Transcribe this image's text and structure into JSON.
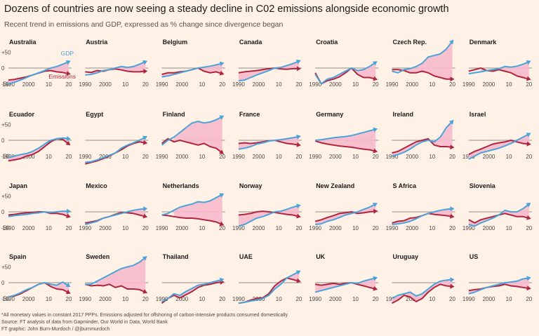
{
  "header": {
    "title": "Dozens of countries are now seeing a steady decline in C02 emissions alongside economic growth",
    "subtitle": "Recent trend in emissions and GDP, expressed as % change since divergence began"
  },
  "footer": {
    "note": "*All monetary values in constant 2017 PPPs. Emissions adjusted for offshoring of carbon-intensive products consumed domestically",
    "source": "Source: FT analysis of data from Gapminder, Our World in Data, World Bank",
    "credit": "FT graphic: John Burn-Murdoch / @jburnmurdoch"
  },
  "colors": {
    "background": "#fff1e5",
    "gdp": "#4aa3d9",
    "emissions": "#b0253e",
    "fill": "#f7b9cb",
    "zero_line": "#6b6b6b"
  },
  "chart_data": {
    "type": "line",
    "layout": "small-multiples 7x4",
    "xlim": [
      1990,
      2020
    ],
    "ylim": [
      -50,
      50
    ],
    "x_ticks": [
      1990,
      2000,
      10,
      20
    ],
    "y_ticks": [
      "+50",
      "0",
      "-50"
    ],
    "legend": {
      "gdp": "GDP",
      "emissions": "Emissions",
      "placement": "inside first panel"
    },
    "x": [
      1990,
      1993,
      1996,
      1999,
      2002,
      2005,
      2008,
      2011,
      2014,
      2017,
      2020
    ],
    "panels": [
      {
        "name": "Australia",
        "start": 1990,
        "gdp": [
          -50,
          -45,
          -38,
          -30,
          -22,
          -15,
          -8,
          0,
          5,
          12,
          20
        ],
        "emissions": [
          -38,
          -36,
          -32,
          -28,
          -22,
          -16,
          -10,
          -8,
          -12,
          -14,
          -18
        ]
      },
      {
        "name": "Austria",
        "start": 1992,
        "gdp": [
          -22,
          -20,
          -15,
          -8,
          -5,
          0,
          5,
          2,
          5,
          12,
          20
        ],
        "emissions": [
          -12,
          -14,
          -8,
          -10,
          -5,
          -3,
          -6,
          -10,
          -12,
          -12,
          -10
        ]
      },
      {
        "name": "Belgium",
        "start": 1990,
        "gdp": [
          -28,
          -25,
          -20,
          -15,
          -10,
          -5,
          0,
          3,
          6,
          10,
          15
        ],
        "emissions": [
          -20,
          -15,
          -15,
          -12,
          -10,
          -5,
          0,
          -10,
          -15,
          -12,
          -18
        ]
      },
      {
        "name": "Canada",
        "start": 1990,
        "gdp": [
          -40,
          -38,
          -30,
          -22,
          -15,
          -8,
          0,
          2,
          8,
          14,
          22
        ],
        "emissions": [
          -15,
          -12,
          -10,
          -8,
          -5,
          -2,
          0,
          -3,
          -4,
          -2,
          -2
        ]
      },
      {
        "name": "Croatia",
        "start": 1990,
        "gdp": [
          -20,
          -50,
          -35,
          -30,
          -20,
          -10,
          0,
          -8,
          -5,
          5,
          18
        ],
        "emissions": [
          -15,
          -50,
          -40,
          -35,
          -28,
          -15,
          0,
          -20,
          -30,
          -30,
          -35
        ]
      },
      {
        "name": "Czech Rep.",
        "start": 1994,
        "gdp": [
          -10,
          -15,
          -5,
          -2,
          5,
          15,
          35,
          40,
          45,
          60,
          85
        ],
        "emissions": [
          -5,
          -5,
          -8,
          -15,
          -15,
          -10,
          -15,
          -25,
          -30,
          -35,
          -35
        ]
      },
      {
        "name": "Denmark",
        "start": 1994,
        "gdp": [
          -18,
          -15,
          -12,
          -8,
          -5,
          -2,
          5,
          3,
          6,
          12,
          20
        ],
        "emissions": [
          -10,
          -5,
          0,
          -8,
          -10,
          -5,
          -10,
          -15,
          -25,
          -30,
          -35
        ]
      },
      {
        "name": "Ecuador",
        "start": 1990,
        "gdp": [
          -55,
          -50,
          -45,
          -42,
          -35,
          -25,
          -12,
          0,
          5,
          7,
          5
        ],
        "emissions": [
          -65,
          -62,
          -58,
          -50,
          -45,
          -35,
          -20,
          -5,
          5,
          3,
          -12
        ]
      },
      {
        "name": "Egypt",
        "start": 1990,
        "gdp": [
          -70,
          -68,
          -62,
          -55,
          -48,
          -40,
          -25,
          -15,
          -8,
          0,
          10
        ],
        "emissions": [
          -75,
          -70,
          -65,
          -58,
          -50,
          -40,
          -30,
          -18,
          -10,
          -5,
          -8
        ]
      },
      {
        "name": "Finland",
        "start": 1994,
        "gdp": [
          -15,
          0,
          10,
          25,
          40,
          55,
          60,
          55,
          58,
          65,
          75
        ],
        "emissions": [
          -10,
          5,
          -5,
          0,
          -5,
          -10,
          -15,
          -10,
          -20,
          -25,
          -40
        ]
      },
      {
        "name": "France",
        "start": 1990,
        "gdp": [
          -28,
          -25,
          -20,
          -12,
          -8,
          -3,
          0,
          2,
          5,
          8,
          12
        ],
        "emissions": [
          -10,
          -8,
          -10,
          -8,
          -5,
          -2,
          0,
          -5,
          -10,
          -12,
          -15
        ]
      },
      {
        "name": "Germany",
        "start": 1990,
        "gdp": [
          0,
          2,
          5,
          8,
          10,
          12,
          15,
          20,
          25,
          30,
          35
        ],
        "emissions": [
          -2,
          -8,
          -12,
          -15,
          -18,
          -20,
          -22,
          -25,
          -28,
          -30,
          -35
        ]
      },
      {
        "name": "Ireland",
        "start": 1990,
        "gdp": [
          -50,
          -45,
          -38,
          -28,
          -15,
          -5,
          0,
          -5,
          10,
          40,
          60
        ],
        "emissions": [
          -40,
          -35,
          -25,
          -15,
          -5,
          0,
          5,
          -15,
          -20,
          -20,
          -22
        ]
      },
      {
        "name": "Israel",
        "start": 1990,
        "gdp": [
          -60,
          -50,
          -40,
          -35,
          -30,
          -25,
          -18,
          -10,
          0,
          10,
          20
        ],
        "emissions": [
          -45,
          -35,
          -28,
          -20,
          -12,
          -8,
          -5,
          0,
          -5,
          -10,
          -12
        ]
      },
      {
        "name": "Japan",
        "start": 1990,
        "gdp": [
          -15,
          -12,
          -10,
          -8,
          -5,
          -3,
          0,
          -2,
          0,
          2,
          2
        ],
        "emissions": [
          -10,
          -8,
          -5,
          -3,
          -2,
          0,
          0,
          -5,
          -5,
          -8,
          -15
        ]
      },
      {
        "name": "Mexico",
        "start": 1990,
        "gdp": [
          -40,
          -35,
          -30,
          -20,
          -15,
          -10,
          -5,
          0,
          5,
          8,
          10
        ],
        "emissions": [
          -35,
          -32,
          -28,
          -20,
          -15,
          -8,
          -2,
          -3,
          -5,
          -10,
          -15
        ]
      },
      {
        "name": "Netherlands",
        "start": 1994,
        "gdp": [
          -10,
          -5,
          5,
          15,
          20,
          25,
          32,
          30,
          35,
          45,
          55
        ],
        "emissions": [
          -10,
          -12,
          -15,
          -18,
          -20,
          -20,
          -22,
          -25,
          -28,
          -32,
          -40
        ]
      },
      {
        "name": "Norway",
        "start": 1990,
        "gdp": [
          -45,
          -40,
          -30,
          -20,
          -15,
          -8,
          0,
          2,
          8,
          15,
          20
        ],
        "emissions": [
          -10,
          -8,
          -5,
          0,
          2,
          0,
          -2,
          -5,
          -8,
          -10,
          -15
        ]
      },
      {
        "name": "New Zealand",
        "start": 1990,
        "gdp": [
          -40,
          -38,
          -30,
          -25,
          -18,
          -10,
          -5,
          0,
          8,
          15,
          25
        ],
        "emissions": [
          -30,
          -25,
          -18,
          -12,
          -5,
          -3,
          0,
          -5,
          -3,
          0,
          2
        ]
      },
      {
        "name": "S Africa",
        "start": 1990,
        "gdp": [
          -40,
          -38,
          -35,
          -30,
          -22,
          -12,
          -5,
          0,
          5,
          8,
          10
        ],
        "emissions": [
          -35,
          -30,
          -28,
          -20,
          -18,
          -12,
          -5,
          -8,
          -10,
          -12,
          -15
        ]
      },
      {
        "name": "Slovenia",
        "start": 1990,
        "gdp": [
          -40,
          -45,
          -35,
          -28,
          -20,
          -10,
          5,
          0,
          0,
          10,
          25
        ],
        "emissions": [
          -25,
          -35,
          -25,
          -20,
          -15,
          -10,
          -5,
          -10,
          -15,
          -15,
          -20
        ]
      },
      {
        "name": "Spain",
        "start": 1990,
        "gdp": [
          -45,
          -40,
          -32,
          -22,
          -15,
          -5,
          0,
          -5,
          -8,
          2,
          -10
        ],
        "emissions": [
          -45,
          -42,
          -35,
          -25,
          -15,
          -5,
          0,
          -12,
          -20,
          -22,
          -32
        ]
      },
      {
        "name": "Sweden",
        "start": 1994,
        "gdp": [
          -5,
          -5,
          5,
          15,
          25,
          35,
          45,
          50,
          55,
          65,
          80
        ],
        "emissions": [
          -5,
          -10,
          -8,
          -10,
          -5,
          -15,
          -10,
          -20,
          -20,
          -22,
          -30
        ]
      },
      {
        "name": "Thailand",
        "start": 1990,
        "gdp": [
          -60,
          -50,
          -35,
          -40,
          -28,
          -18,
          -8,
          -5,
          0,
          5,
          10
        ],
        "emissions": [
          -65,
          -50,
          -40,
          -48,
          -38,
          -28,
          -15,
          -8,
          -5,
          0,
          2
        ]
      },
      {
        "name": "UAE",
        "start": 1990,
        "gdp": [
          -65,
          -62,
          -58,
          -55,
          -50,
          -40,
          -20,
          -5,
          15,
          25,
          35
        ],
        "emissions": [
          -65,
          -62,
          -55,
          -50,
          -48,
          -35,
          -10,
          5,
          15,
          10,
          5
        ]
      },
      {
        "name": "UK",
        "start": 1990,
        "gdp": [
          -30,
          -25,
          -20,
          -15,
          -10,
          -5,
          0,
          -2,
          5,
          10,
          15
        ],
        "emissions": [
          -5,
          -8,
          -5,
          -2,
          -5,
          -2,
          0,
          -5,
          -10,
          -15,
          -20
        ]
      },
      {
        "name": "Uruguay",
        "start": 1990,
        "gdp": [
          -50,
          -40,
          -35,
          -30,
          -42,
          -35,
          -20,
          -5,
          5,
          8,
          10
        ],
        "emissions": [
          -65,
          -55,
          -40,
          -45,
          -60,
          -50,
          -30,
          -15,
          -5,
          -10,
          -12
        ]
      },
      {
        "name": "US",
        "start": 1990,
        "gdp": [
          -35,
          -30,
          -22,
          -15,
          -10,
          -5,
          0,
          2,
          5,
          12,
          15
        ],
        "emissions": [
          -25,
          -22,
          -20,
          -15,
          -12,
          -10,
          -5,
          -10,
          -12,
          -15,
          -18
        ]
      }
    ]
  }
}
